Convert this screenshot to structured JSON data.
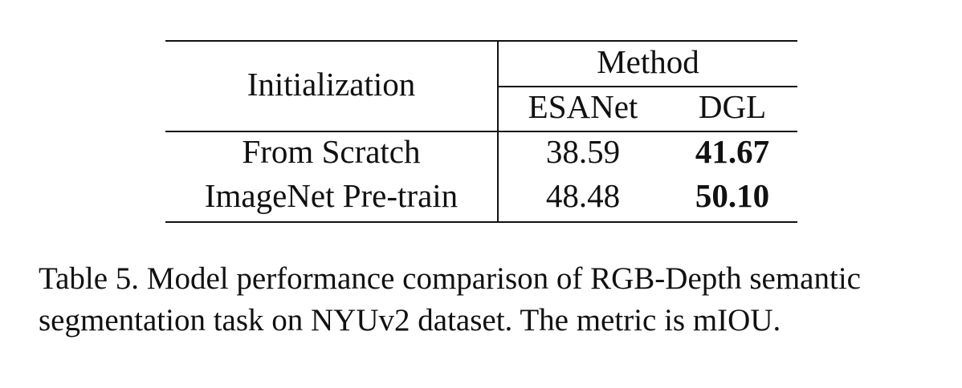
{
  "table": {
    "header": {
      "row_label": "Initialization",
      "group_label": "Method",
      "columns": [
        "ESANet",
        "DGL"
      ]
    },
    "rows": [
      {
        "label": "From Scratch",
        "values": [
          "38.59",
          "41.67"
        ],
        "best_index": 1
      },
      {
        "label": "ImageNet Pre-train",
        "values": [
          "48.48",
          "50.10"
        ],
        "best_index": 1
      }
    ]
  },
  "caption": {
    "line1": "Table 5. Model performance comparison of RGB-Depth semantic",
    "line2": "segmentation task on NYUv2 dataset. The metric is mIOU."
  }
}
